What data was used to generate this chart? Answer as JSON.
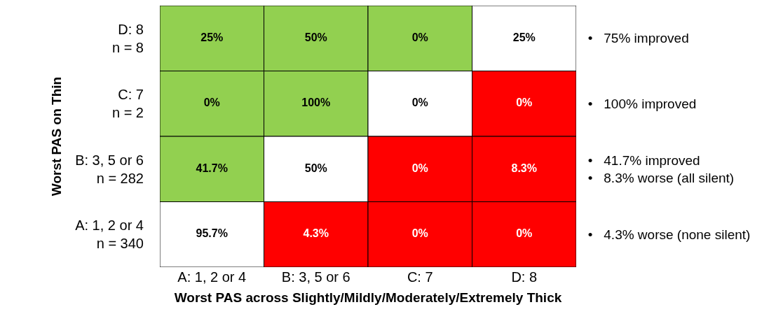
{
  "chart_data": {
    "type": "heatmap",
    "xlabel": "Worst PAS across Slightly/Mildly/Moderately/Extremely Thick",
    "ylabel": "Worst PAS on Thin",
    "categories": [
      "A: 1, 2 or 4",
      "B: 3, 5 or 6",
      "C: 7",
      "D: 8"
    ],
    "y_categories": [
      "D: 8\nn = 8",
      "C: 7\nn = 2",
      "B: 3, 5 or 6\nn = 282",
      "A: 1, 2 or 4\nn = 340"
    ],
    "cells": [
      [
        25,
        50,
        0,
        25
      ],
      [
        0,
        100,
        0,
        0
      ],
      [
        41.7,
        50,
        0,
        8.3
      ],
      [
        95.7,
        4.3,
        0,
        0
      ]
    ],
    "cell_labels": [
      [
        "25%",
        "50%",
        "0%",
        "25%"
      ],
      [
        "0%",
        "100%",
        "0%",
        "0%"
      ],
      [
        "41.7%",
        "50%",
        "0%",
        "8.3%"
      ],
      [
        "95.7%",
        "4.3%",
        "0%",
        "0%"
      ]
    ],
    "colors": [
      [
        "#92d050",
        "#92d050",
        "#92d050",
        "#ffffff"
      ],
      [
        "#92d050",
        "#92d050",
        "#ffffff",
        "#ff0000"
      ],
      [
        "#92d050",
        "#ffffff",
        "#ff0000",
        "#ff0000"
      ],
      [
        "#ffffff",
        "#ff0000",
        "#ff0000",
        "#ff0000"
      ]
    ],
    "y2_categories": [
      "•   75% improved",
      "•   100% improved",
      "•   41.7% improved\n•   8.3% worse (all silent)",
      "•   4.3% worse (none silent)"
    ]
  }
}
